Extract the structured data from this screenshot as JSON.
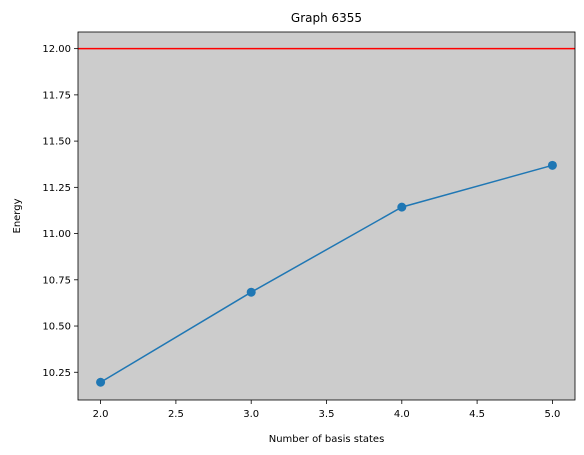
{
  "chart_data": {
    "type": "line",
    "title": "Graph 6355",
    "xlabel": "Number of basis states",
    "ylabel": "Energy",
    "xlim": [
      1.85,
      5.15
    ],
    "ylim": [
      10.1,
      12.09
    ],
    "x_ticks": [
      2.0,
      2.5,
      3.0,
      3.5,
      4.0,
      4.5,
      5.0
    ],
    "x_tick_labels": [
      "2.0",
      "2.5",
      "3.0",
      "3.5",
      "4.0",
      "4.5",
      "5.0"
    ],
    "y_ticks": [
      10.25,
      10.5,
      10.75,
      11.0,
      11.25,
      11.5,
      11.75,
      12.0
    ],
    "y_tick_labels": [
      "10.25",
      "10.50",
      "10.75",
      "11.00",
      "11.25",
      "11.50",
      "11.75",
      "12.00"
    ],
    "grid": false,
    "plot_background": "#cccccc",
    "series": [
      {
        "x": [
          2,
          3,
          4,
          5
        ],
        "values": [
          10.196,
          10.683,
          11.143,
          11.369
        ],
        "color": "#1f77b4",
        "marker": "circle"
      }
    ],
    "reference_lines": [
      {
        "orientation": "horizontal",
        "value": 12.0,
        "color": "#ff0000"
      }
    ]
  }
}
